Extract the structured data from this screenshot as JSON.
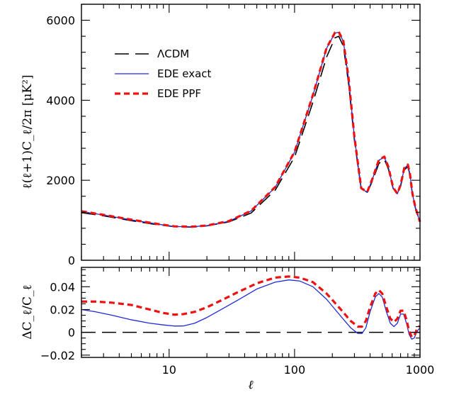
{
  "chart_data": [
    {
      "type": "line",
      "title": "",
      "xlabel": "",
      "ylabel": "ℓ(ℓ+1)C_ℓ/2π [μK²]",
      "xscale": "log",
      "xlim": [
        2,
        1000
      ],
      "ylim": [
        0,
        6400
      ],
      "yticks": [
        "0",
        "2000",
        "4000",
        "6000"
      ],
      "legend_position": "top-left",
      "series": [
        {
          "name": "ΛCDM",
          "style": "long-dash",
          "color": "#000000",
          "x": [
            2,
            3,
            5,
            8,
            11,
            15,
            20,
            30,
            45,
            70,
            100,
            140,
            180,
            210,
            225,
            245,
            270,
            300,
            340,
            380,
            420,
            470,
            520,
            560,
            610,
            660,
            700,
            750,
            800,
            830,
            870,
            920,
            1000
          ],
          "y": [
            1190,
            1110,
            990,
            890,
            840,
            830,
            860,
            960,
            1180,
            1750,
            2580,
            3950,
            5080,
            5560,
            5600,
            5350,
            4400,
            3000,
            1780,
            1700,
            2000,
            2420,
            2520,
            2280,
            1800,
            1650,
            1850,
            2260,
            2340,
            2150,
            1650,
            1300,
            960
          ]
        },
        {
          "name": "EDE exact",
          "style": "solid",
          "color": "#1f2bd6",
          "x": [
            2,
            3,
            5,
            8,
            11,
            15,
            20,
            30,
            45,
            70,
            100,
            140,
            180,
            210,
            225,
            245,
            270,
            300,
            340,
            380,
            420,
            470,
            520,
            560,
            610,
            660,
            700,
            750,
            800,
            830,
            870,
            920,
            1000
          ],
          "y": [
            1220,
            1130,
            1010,
            905,
            845,
            835,
            865,
            975,
            1230,
            1820,
            2700,
            4120,
            5300,
            5680,
            5700,
            5470,
            4520,
            3070,
            1790,
            1700,
            2050,
            2500,
            2580,
            2320,
            1810,
            1660,
            1880,
            2300,
            2380,
            2160,
            1660,
            1300,
            960
          ]
        },
        {
          "name": "EDE PPF",
          "style": "short-dash",
          "color": "#ee1111",
          "x": [
            2,
            3,
            5,
            8,
            11,
            15,
            20,
            30,
            45,
            70,
            100,
            140,
            180,
            210,
            225,
            245,
            270,
            300,
            340,
            380,
            420,
            470,
            520,
            560,
            610,
            660,
            700,
            750,
            800,
            830,
            870,
            920,
            1000
          ],
          "y": [
            1225,
            1135,
            1015,
            910,
            848,
            838,
            868,
            980,
            1235,
            1830,
            2710,
            4130,
            5310,
            5690,
            5710,
            5480,
            4530,
            3080,
            1800,
            1710,
            2060,
            2510,
            2590,
            2330,
            1820,
            1665,
            1885,
            2310,
            2390,
            2170,
            1670,
            1310,
            965
          ]
        }
      ]
    },
    {
      "type": "line",
      "title": "",
      "xlabel": "ℓ",
      "ylabel": "ΔC_ℓ/C_ℓ",
      "xscale": "log",
      "xlim": [
        2,
        1000
      ],
      "ylim": [
        -0.022,
        0.057
      ],
      "xticks": [
        "10",
        "100",
        "1000"
      ],
      "yticks": [
        "−0.02",
        "0",
        "0.02",
        "0.04"
      ],
      "series": [
        {
          "name": "ΛCDM",
          "style": "long-dash",
          "color": "#000000",
          "x": [
            2,
            1000
          ],
          "y": [
            0,
            0
          ]
        },
        {
          "name": "EDE exact",
          "style": "solid",
          "color": "#1f2bd6",
          "x": [
            2,
            2.6,
            3.5,
            5,
            7,
            9,
            11,
            13,
            16,
            20,
            26,
            35,
            50,
            70,
            90,
            110,
            140,
            180,
            230,
            280,
            320,
            345,
            370,
            400,
            440,
            470,
            500,
            540,
            580,
            620,
            660,
            700,
            740,
            780,
            820,
            860,
            900,
            940,
            980,
            1000
          ],
          "y": [
            0.02,
            0.018,
            0.015,
            0.011,
            0.008,
            0.0065,
            0.0055,
            0.0056,
            0.008,
            0.013,
            0.02,
            0.028,
            0.038,
            0.044,
            0.046,
            0.045,
            0.04,
            0.029,
            0.015,
            0.004,
            -0.001,
            -0.001,
            0.004,
            0.018,
            0.031,
            0.034,
            0.031,
            0.018,
            0.008,
            0.005,
            0.008,
            0.016,
            0.016,
            0.008,
            -0.002,
            -0.006,
            -0.005,
            0.0,
            0.003,
            0.003
          ]
        },
        {
          "name": "EDE PPF",
          "style": "short-dash",
          "color": "#ee1111",
          "x": [
            2,
            2.6,
            3.5,
            5,
            7,
            9,
            11,
            13,
            16,
            20,
            26,
            35,
            50,
            70,
            90,
            110,
            140,
            180,
            230,
            280,
            320,
            345,
            370,
            400,
            440,
            470,
            500,
            540,
            580,
            620,
            660,
            700,
            740,
            780,
            820,
            860,
            900,
            940,
            980,
            1000
          ],
          "y": [
            0.027,
            0.027,
            0.026,
            0.024,
            0.02,
            0.017,
            0.0155,
            0.016,
            0.018,
            0.022,
            0.028,
            0.035,
            0.043,
            0.048,
            0.049,
            0.048,
            0.044,
            0.034,
            0.021,
            0.01,
            0.005,
            0.005,
            0.01,
            0.022,
            0.034,
            0.037,
            0.034,
            0.022,
            0.012,
            0.009,
            0.012,
            0.019,
            0.019,
            0.011,
            0.001,
            -0.004,
            -0.003,
            0.002,
            0.005,
            0.005
          ]
        }
      ]
    }
  ]
}
